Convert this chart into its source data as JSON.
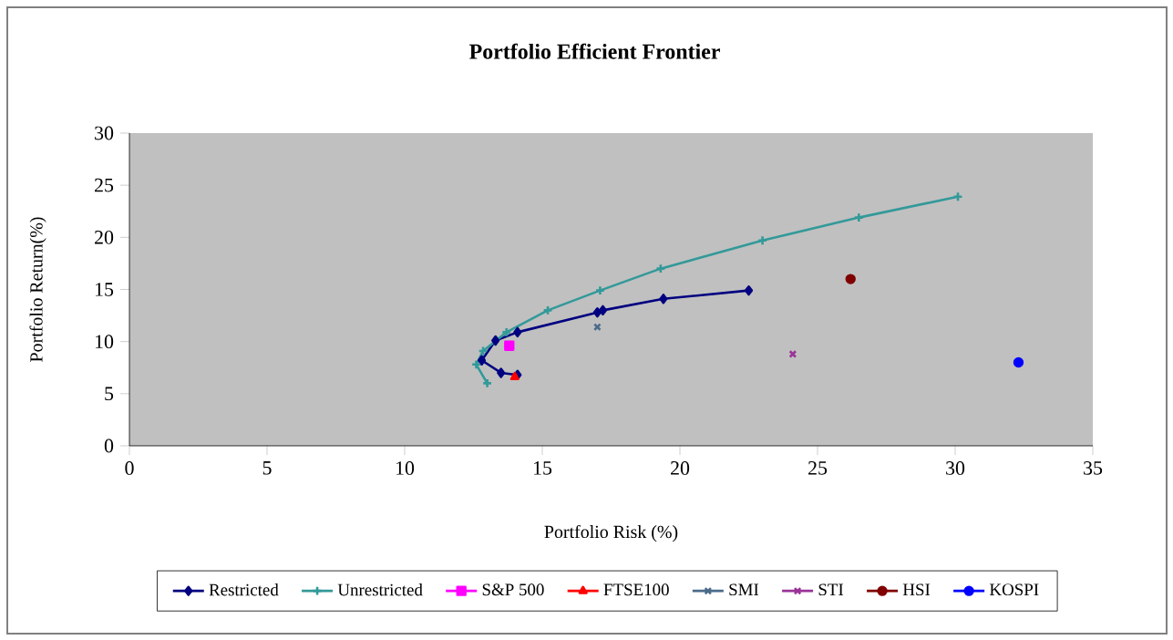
{
  "chart_data": {
    "type": "scatter",
    "title": "Portfolio  Efficient Frontier",
    "xlabel": "Portfolio Risk  (%)",
    "ylabel": "Portfolio Return(%)",
    "xlim": [
      0,
      35
    ],
    "xticks": [
      0,
      5,
      10,
      15,
      20,
      25,
      30,
      35
    ],
    "ylim": [
      0,
      30
    ],
    "yticks": [
      0,
      5,
      10,
      15,
      20,
      25,
      30
    ],
    "grid": false,
    "legend": "bottom",
    "series": [
      {
        "name": "Restricted",
        "type": "line",
        "marker": "diamond",
        "color": "#000080",
        "x": [
          14.1,
          13.5,
          12.8,
          13.3,
          14.1,
          17.0,
          17.2,
          19.4,
          22.5
        ],
        "values": [
          6.8,
          7.0,
          8.2,
          10.1,
          10.9,
          12.8,
          13.0,
          14.1,
          14.9
        ]
      },
      {
        "name": "Unrestricted",
        "type": "line",
        "marker": "cross",
        "color": "#339999",
        "x": [
          13.0,
          12.6,
          12.85,
          13.7,
          15.2,
          17.1,
          19.3,
          23.0,
          26.5,
          30.1
        ],
        "values": [
          6.0,
          7.8,
          9.1,
          10.9,
          13.0,
          14.9,
          17.0,
          19.7,
          21.9,
          23.9
        ]
      },
      {
        "name": "S&P 500",
        "marker": "square",
        "color": "#ff00ff",
        "x": [
          13.8
        ],
        "values": [
          9.6
        ]
      },
      {
        "name": "FTSE100",
        "marker": "triangle",
        "color": "#ff0000",
        "x": [
          14.0
        ],
        "values": [
          6.6
        ]
      },
      {
        "name": "SMI",
        "marker": "cross",
        "color": "#4a6b8a",
        "x": [
          17.0
        ],
        "values": [
          11.4
        ]
      },
      {
        "name": "STI",
        "marker": "cross",
        "color": "#993399",
        "x": [
          24.1
        ],
        "values": [
          8.8
        ]
      },
      {
        "name": "HSI",
        "marker": "circle",
        "color": "#800000",
        "x": [
          26.2
        ],
        "values": [
          16.0
        ]
      },
      {
        "name": "KOSPI",
        "marker": "circle",
        "color": "#0000ff",
        "x": [
          32.3
        ],
        "values": [
          8.0
        ]
      }
    ]
  }
}
